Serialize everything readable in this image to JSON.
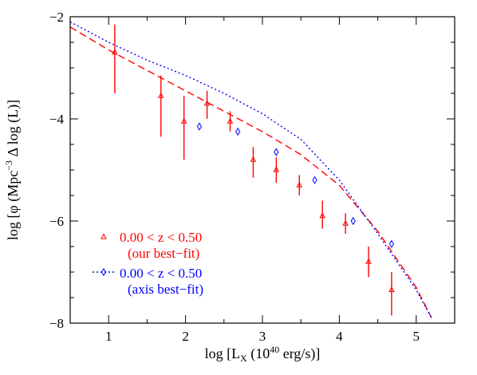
{
  "chart_data": {
    "type": "scatter",
    "title": "",
    "xlabel": {
      "main": "log [L",
      "sub": "X",
      "rest": " (10",
      "sup": "40",
      "end": " erg/s)]"
    },
    "ylabel": {
      "main": "log [φ (Mpc",
      "sup": "−3",
      "rest": " Δ log (L)]"
    },
    "xlim": [
      0.5,
      5.5
    ],
    "ylim": [
      -8,
      -2
    ],
    "xticks": [
      1,
      2,
      3,
      4,
      5
    ],
    "xtick_labels": [
      "1",
      "2",
      "3",
      "4",
      "5"
    ],
    "yticks": [
      -8,
      -6,
      -4,
      -2
    ],
    "ytick_labels": [
      "−8",
      "−6",
      "−4",
      "−2"
    ],
    "grid": false,
    "legend_position": "bottom-left",
    "series": [
      {
        "name": "0.00 < z < 0.50",
        "sublabel": "(our best−fit)",
        "color": "#ff0000",
        "marker": "triangle",
        "points": [
          {
            "x": 1.08,
            "y": -2.7,
            "ylo": -3.5,
            "yhi": -2.15
          },
          {
            "x": 1.68,
            "y": -3.55,
            "ylo": -4.35,
            "yhi": -3.15
          },
          {
            "x": 1.98,
            "y": -4.05,
            "ylo": -4.8,
            "yhi": -3.55
          },
          {
            "x": 2.28,
            "y": -3.7,
            "ylo": -4.0,
            "yhi": -3.45
          },
          {
            "x": 2.58,
            "y": -4.05,
            "ylo": -4.25,
            "yhi": -3.85
          },
          {
            "x": 2.88,
            "y": -4.8,
            "ylo": -5.15,
            "yhi": -4.55
          },
          {
            "x": 3.18,
            "y": -5.0,
            "ylo": -5.25,
            "yhi": -4.75
          },
          {
            "x": 3.48,
            "y": -5.3,
            "ylo": -5.5,
            "yhi": -5.1
          },
          {
            "x": 3.78,
            "y": -5.9,
            "ylo": -6.15,
            "yhi": -5.6
          },
          {
            "x": 4.08,
            "y": -6.05,
            "ylo": -6.25,
            "yhi": -5.85
          },
          {
            "x": 4.38,
            "y": -6.8,
            "ylo": -7.1,
            "yhi": -6.5
          },
          {
            "x": 4.68,
            "y": -7.35,
            "ylo": -7.85,
            "yhi": -7.0
          }
        ]
      },
      {
        "name": "0.00 < z < 0.50",
        "sublabel": "(axis best−fit)",
        "color": "#0000ff",
        "marker": "diamond",
        "points": [
          {
            "x": 2.18,
            "y": -4.15
          },
          {
            "x": 2.68,
            "y": -4.25
          },
          {
            "x": 3.18,
            "y": -4.65
          },
          {
            "x": 3.68,
            "y": -5.2
          },
          {
            "x": 4.18,
            "y": -6.0
          },
          {
            "x": 4.68,
            "y": -6.45
          }
        ]
      }
    ],
    "fit_curves": [
      {
        "name": "our best-fit",
        "color": "#ff0000",
        "style": "dashed",
        "points": [
          [
            0.5,
            -2.2
          ],
          [
            1.0,
            -2.65
          ],
          [
            1.5,
            -3.05
          ],
          [
            2.0,
            -3.45
          ],
          [
            2.5,
            -3.85
          ],
          [
            3.0,
            -4.25
          ],
          [
            3.5,
            -4.7
          ],
          [
            4.0,
            -5.3
          ],
          [
            4.5,
            -6.2
          ],
          [
            5.0,
            -7.3
          ],
          [
            5.2,
            -7.9
          ]
        ]
      },
      {
        "name": "axis best-fit",
        "color": "#0000ff",
        "style": "dotted",
        "points": [
          [
            0.5,
            -2.1
          ],
          [
            1.0,
            -2.5
          ],
          [
            1.5,
            -2.85
          ],
          [
            2.0,
            -3.15
          ],
          [
            2.5,
            -3.5
          ],
          [
            3.0,
            -3.9
          ],
          [
            3.5,
            -4.4
          ],
          [
            4.0,
            -5.2
          ],
          [
            4.5,
            -6.25
          ],
          [
            5.0,
            -7.35
          ],
          [
            5.2,
            -7.9
          ]
        ]
      }
    ]
  }
}
